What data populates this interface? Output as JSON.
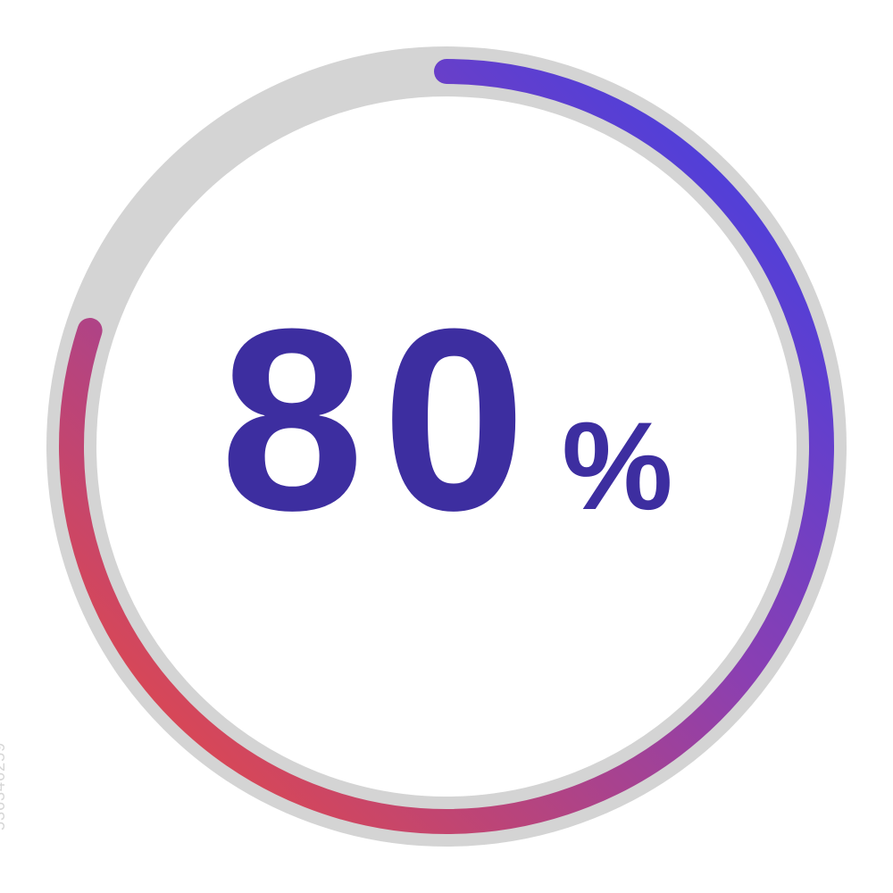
{
  "progress": {
    "type": "radial-progress",
    "value": 80,
    "value_text": "80",
    "symbol": "%",
    "start_angle_deg": 0,
    "end_angle_deg": 288,
    "track_color": "#d4d4d4",
    "track_stroke_width": 56,
    "arc_stroke_width": 28,
    "radius": 420,
    "viewbox_size": 920,
    "gradient": {
      "start_color": "#f04a3a",
      "mid_color": "#8a3fb2",
      "end_color": "#3a3fe8"
    },
    "text_color": "#3d2ea0",
    "value_fontsize": 290,
    "symbol_fontsize": 140,
    "background_color": "#ffffff"
  },
  "watermark": {
    "text": "536346259",
    "color": "#bbbbbb"
  }
}
